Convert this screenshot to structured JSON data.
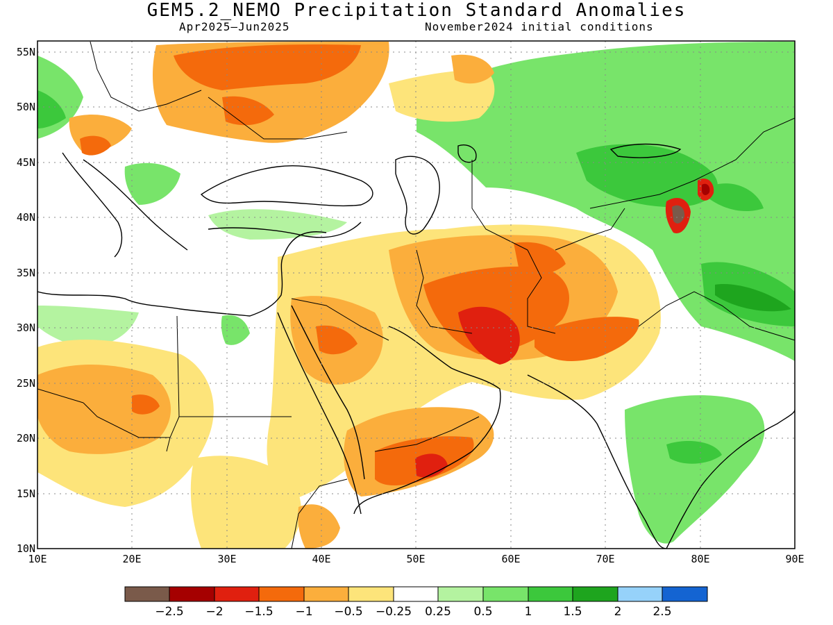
{
  "title": "GEM5.2_NEMO Precipitation Standard Anomalies",
  "period": "Apr2025—Jun2025",
  "init": "November2024 initial conditions",
  "lat_labels": [
    "55N",
    "50N",
    "45N",
    "40N",
    "35N",
    "30N",
    "25N",
    "20N",
    "15N",
    "10N"
  ],
  "lon_labels": [
    "10E",
    "20E",
    "30E",
    "40E",
    "50E",
    "60E",
    "70E",
    "80E",
    "90E"
  ],
  "colorbar": {
    "colors": [
      "#7a5a4a",
      "#a50000",
      "#e0200f",
      "#f46a0c",
      "#fbae3c",
      "#fde47a",
      "#ffffff",
      "#b4f3a0",
      "#78e46a",
      "#3cc83c",
      "#1ea51e",
      "#96d2fa",
      "#1464d2"
    ],
    "labels": [
      "−2.5",
      "−2",
      "−1.5",
      "−1",
      "−0.5",
      "−0.25",
      "0.25",
      "0.5",
      "1",
      "1.5",
      "2",
      "2.5"
    ]
  }
}
